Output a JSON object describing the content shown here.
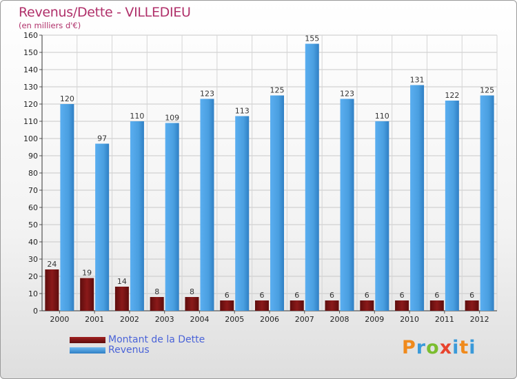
{
  "chart_data": {
    "type": "bar",
    "title": "Revenus/Dette - VILLEDIEU",
    "subtitle": "(en milliers d'€)",
    "categories": [
      "2000",
      "2001",
      "2002",
      "2003",
      "2004",
      "2005",
      "2006",
      "2007",
      "2008",
      "2009",
      "2010",
      "2011",
      "2012"
    ],
    "series": [
      {
        "name": "Montant de la Dette",
        "color": "#8b1a1a",
        "values": [
          24,
          19,
          14,
          8,
          8,
          6,
          6,
          6,
          6,
          6,
          6,
          6,
          6
        ]
      },
      {
        "name": "Revenus",
        "color": "#4a9fe0",
        "values": [
          120,
          97,
          110,
          109,
          123,
          113,
          125,
          155,
          123,
          110,
          131,
          122,
          125
        ]
      }
    ],
    "ylim": [
      0,
      160
    ],
    "yticks": [
      0,
      10,
      20,
      30,
      40,
      50,
      60,
      70,
      80,
      90,
      100,
      110,
      120,
      130,
      140,
      150,
      160
    ],
    "grid": true,
    "legend_position": "bottom-left"
  },
  "logo": {
    "letters": [
      "P",
      "r",
      "o",
      "x",
      "i",
      "t",
      "i"
    ]
  }
}
